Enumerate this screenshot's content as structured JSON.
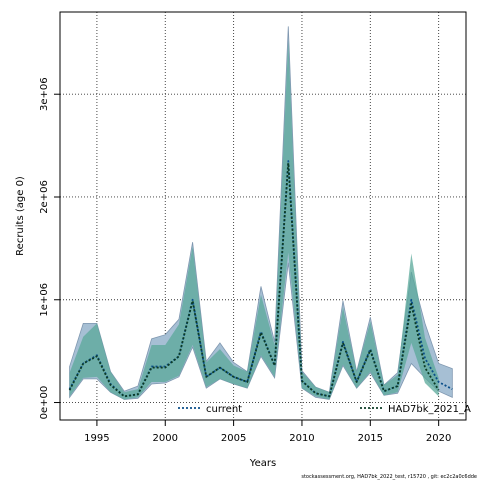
{
  "chart_data": {
    "type": "area",
    "xlabel": "Years",
    "ylabel": "Recruits (age 0)",
    "xlim": [
      1992.3,
      2022.0
    ],
    "ylim": [
      -170000,
      3800000
    ],
    "x_ticks": [
      1995,
      2000,
      2005,
      2010,
      2015,
      2020
    ],
    "x_tick_labels": [
      "1995",
      "2000",
      "2005",
      "2010",
      "2015",
      "2020"
    ],
    "y_ticks": [
      0,
      1000000,
      2000000,
      3000000
    ],
    "y_tick_labels": [
      "0e+00",
      "1e+06",
      "2e+06",
      "3e+06"
    ],
    "grid": true,
    "legend_position": "bottom",
    "footer": "stockassessment.org, HAD7bk_2022_test, r15720 , git: ec2c2a0c6dde",
    "series": [
      {
        "name": "current",
        "color": "#0b4f8a",
        "band_color": "#a6bfd4",
        "x": [
          1993,
          1994,
          1995,
          1996,
          1997,
          1998,
          1999,
          2000,
          2001,
          2002,
          2003,
          2004,
          2005,
          2006,
          2007,
          2008,
          2009,
          2010,
          2011,
          2012,
          2013,
          2014,
          2015,
          2016,
          2017,
          2018,
          2019,
          2020,
          2021
        ],
        "values": [
          130000,
          380000,
          460000,
          180000,
          60000,
          80000,
          350000,
          350000,
          450000,
          1000000,
          250000,
          340000,
          250000,
          200000,
          690000,
          360000,
          2350000,
          210000,
          90000,
          60000,
          590000,
          200000,
          520000,
          110000,
          160000,
          1000000,
          430000,
          200000,
          130000
        ],
        "lower": [
          50000,
          230000,
          230000,
          100000,
          30000,
          40000,
          180000,
          190000,
          250000,
          540000,
          140000,
          230000,
          180000,
          140000,
          450000,
          240000,
          1360000,
          140000,
          50000,
          30000,
          360000,
          140000,
          290000,
          70000,
          90000,
          380000,
          240000,
          110000,
          50000
        ],
        "upper": [
          350000,
          770000,
          770000,
          300000,
          110000,
          160000,
          620000,
          660000,
          810000,
          1560000,
          400000,
          580000,
          390000,
          300000,
          1130000,
          590000,
          3660000,
          310000,
          150000,
          100000,
          990000,
          300000,
          830000,
          170000,
          290000,
          1270000,
          770000,
          380000,
          330000
        ]
      },
      {
        "name": "HAD7bk_2021_A",
        "color": "#0c3b25",
        "band_color": "#5aa89a",
        "x": [
          1993,
          1994,
          1995,
          1996,
          1997,
          1998,
          1999,
          2000,
          2001,
          2002,
          2003,
          2004,
          2005,
          2006,
          2007,
          2008,
          2009,
          2010,
          2011,
          2012,
          2013,
          2014,
          2015,
          2016,
          2017,
          2018,
          2019,
          2020
        ],
        "values": [
          120000,
          380000,
          450000,
          170000,
          60000,
          80000,
          340000,
          340000,
          450000,
          990000,
          250000,
          340000,
          250000,
          200000,
          680000,
          360000,
          2330000,
          210000,
          90000,
          60000,
          580000,
          200000,
          510000,
          110000,
          160000,
          960000,
          340000,
          120000
        ],
        "lower": [
          60000,
          240000,
          250000,
          100000,
          30000,
          50000,
          200000,
          200000,
          260000,
          560000,
          150000,
          230000,
          180000,
          140000,
          460000,
          250000,
          1460000,
          140000,
          60000,
          30000,
          370000,
          140000,
          300000,
          70000,
          100000,
          580000,
          190000,
          60000
        ],
        "upper": [
          290000,
          640000,
          770000,
          300000,
          100000,
          130000,
          560000,
          560000,
          760000,
          1520000,
          390000,
          520000,
          360000,
          300000,
          1050000,
          560000,
          3530000,
          300000,
          150000,
          100000,
          930000,
          300000,
          790000,
          170000,
          270000,
          1450000,
          630000,
          240000
        ]
      }
    ]
  }
}
